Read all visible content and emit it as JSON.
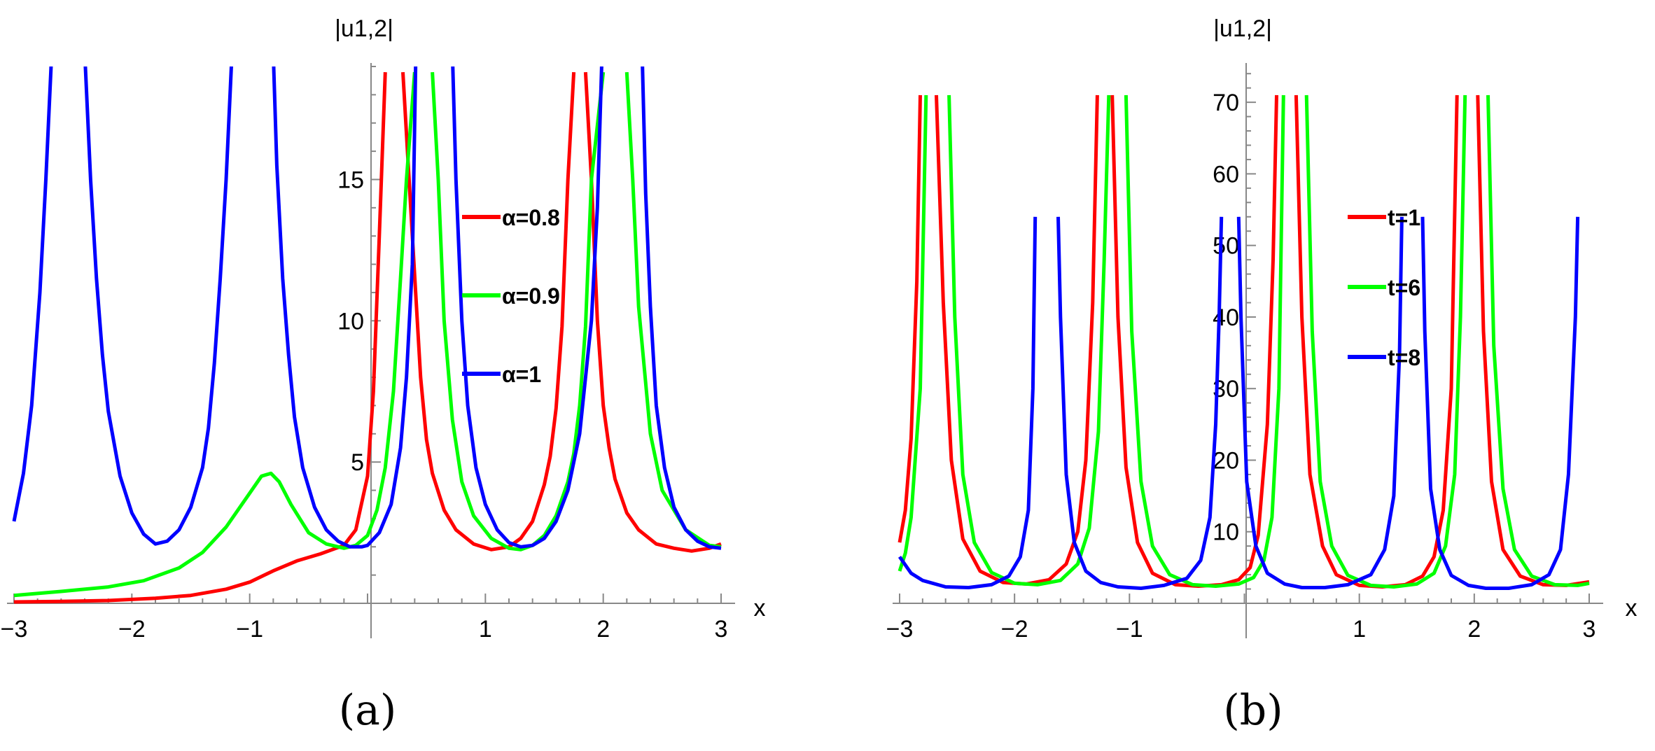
{
  "chart_data": [
    {
      "type": "line",
      "panel_label": "(a)",
      "xlabel": "x",
      "ylabel": "|u1,2|",
      "xlim": [
        -3,
        3
      ],
      "ylim": [
        0,
        19
      ],
      "x_ticks": [
        "−3",
        "−2",
        "−1",
        "1",
        "2",
        "3"
      ],
      "y_ticks": [
        "5",
        "10",
        "15"
      ],
      "legend_position": "right",
      "series": [
        {
          "name": "α=0.8",
          "color": "#ff0000",
          "x": [
            -3.0,
            -2.6,
            -2.2,
            -1.8,
            -1.5,
            -1.2,
            -1.0,
            -0.8,
            -0.6,
            -0.4,
            -0.2,
            -0.1,
            0.0,
            0.05,
            0.1,
            0.15,
            0.2,
            0.3,
            0.38,
            0.45,
            0.5,
            0.55,
            0.65,
            0.75,
            0.9,
            1.05,
            1.2,
            1.3,
            1.4,
            1.5,
            1.55,
            1.6,
            1.65,
            1.7,
            1.75,
            1.8,
            1.85,
            1.9,
            1.95,
            2.0,
            2.05,
            2.1,
            2.2,
            2.3,
            2.45,
            2.6,
            2.75,
            2.9,
            3.0
          ],
          "y": [
            0.05,
            0.07,
            0.1,
            0.18,
            0.28,
            0.5,
            0.75,
            1.15,
            1.5,
            1.75,
            2.05,
            2.6,
            4.5,
            7.5,
            13.0,
            18.8,
            null,
            18.8,
            13.0,
            8.0,
            5.8,
            4.6,
            3.3,
            2.6,
            2.1,
            1.9,
            2.0,
            2.3,
            2.9,
            4.2,
            5.2,
            6.9,
            9.8,
            15.0,
            18.8,
            null,
            18.8,
            15.0,
            10.0,
            7.0,
            5.5,
            4.4,
            3.2,
            2.6,
            2.1,
            1.95,
            1.85,
            1.95,
            2.1
          ]
        },
        {
          "name": "α=0.9",
          "color": "#00ff00",
          "x": [
            -3.0,
            -2.6,
            -2.2,
            -1.9,
            -1.6,
            -1.4,
            -1.2,
            -1.0,
            -0.9,
            -0.82,
            -0.75,
            -0.65,
            -0.5,
            -0.35,
            -0.2,
            -0.1,
            0.0,
            0.08,
            0.15,
            0.22,
            0.28,
            0.33,
            0.4,
            0.48,
            0.55,
            0.6,
            0.65,
            0.72,
            0.8,
            0.9,
            1.05,
            1.2,
            1.3,
            1.4,
            1.5,
            1.6,
            1.7,
            1.75,
            1.8,
            1.85,
            1.9,
            2.0,
            2.1,
            2.2,
            2.25,
            2.3,
            2.4,
            2.5,
            2.7,
            2.9,
            3.0
          ],
          "y": [
            0.28,
            0.42,
            0.58,
            0.8,
            1.25,
            1.8,
            2.7,
            3.9,
            4.5,
            4.6,
            4.3,
            3.5,
            2.5,
            2.1,
            1.95,
            2.05,
            2.4,
            3.3,
            4.8,
            7.5,
            11.5,
            15.0,
            18.8,
            null,
            18.8,
            15.0,
            10.0,
            6.5,
            4.3,
            3.1,
            2.3,
            1.95,
            1.9,
            2.05,
            2.4,
            3.1,
            4.3,
            5.3,
            7.0,
            9.8,
            15.0,
            18.8,
            null,
            18.8,
            15.0,
            10.5,
            6.0,
            4.0,
            2.6,
            2.05,
            2.0
          ]
        },
        {
          "name": "α=1",
          "color": "#0000ff",
          "x": [
            -3.0,
            -2.92,
            -2.85,
            -2.78,
            -2.73,
            -2.68,
            null,
            -2.4,
            -2.35,
            -2.3,
            -2.25,
            -2.2,
            -2.1,
            -2.0,
            -1.9,
            -1.8,
            -1.7,
            -1.6,
            -1.5,
            -1.4,
            -1.35,
            -1.3,
            -1.25,
            -1.2,
            -1.15,
            null,
            -0.8,
            -0.77,
            -0.72,
            -0.67,
            -0.62,
            -0.55,
            -0.45,
            -0.35,
            -0.25,
            -0.15,
            -0.05,
            0.0,
            0.1,
            0.2,
            0.28,
            0.33,
            0.38,
            0.41,
            null,
            0.72,
            0.75,
            0.8,
            0.85,
            0.92,
            1.0,
            1.1,
            1.2,
            1.3,
            1.4,
            1.5,
            1.6,
            1.7,
            1.8,
            1.9,
            1.95,
            1.99,
            null,
            2.33,
            2.36,
            2.4,
            2.45,
            2.52,
            2.6,
            2.7,
            2.8,
            2.9,
            3.0
          ],
          "y": [
            2.9,
            4.6,
            7.0,
            11.0,
            15.0,
            19.5,
            null,
            19.5,
            15.0,
            11.5,
            8.8,
            6.8,
            4.5,
            3.2,
            2.45,
            2.1,
            2.2,
            2.6,
            3.4,
            4.8,
            6.2,
            8.5,
            11.5,
            15.0,
            19.5,
            null,
            19.5,
            15.5,
            11.5,
            8.8,
            6.6,
            4.8,
            3.4,
            2.6,
            2.2,
            2.0,
            2.0,
            2.05,
            2.5,
            3.5,
            5.5,
            8.0,
            12.0,
            19.5,
            null,
            19.5,
            15.0,
            10.0,
            7.0,
            4.8,
            3.5,
            2.6,
            2.15,
            2.0,
            2.05,
            2.3,
            2.9,
            4.0,
            6.0,
            10.0,
            14.0,
            19.5,
            null,
            19.5,
            14.5,
            10.5,
            7.0,
            4.8,
            3.4,
            2.6,
            2.2,
            2.0,
            1.95
          ]
        }
      ]
    },
    {
      "type": "line",
      "panel_label": "(b)",
      "xlabel": "x",
      "ylabel": "|u1,2|",
      "xlim": [
        -3,
        3
      ],
      "ylim": [
        0,
        75
      ],
      "x_ticks": [
        "−3",
        "−2",
        "−1",
        "1",
        "2",
        "3"
      ],
      "y_ticks": [
        "10",
        "20",
        "30",
        "40",
        "50",
        "60",
        "70"
      ],
      "legend_position": "right",
      "series": [
        {
          "name": "t=1",
          "color": "#ff0000",
          "x": [
            -3.0,
            -2.95,
            -2.9,
            -2.85,
            -2.82,
            null,
            -2.68,
            -2.62,
            -2.55,
            -2.45,
            -2.3,
            -2.1,
            -1.9,
            -1.7,
            -1.55,
            -1.45,
            -1.38,
            -1.32,
            -1.28,
            null,
            -1.15,
            -1.1,
            -1.03,
            -0.93,
            -0.8,
            -0.6,
            -0.4,
            -0.2,
            -0.05,
            0.05,
            0.12,
            0.2,
            0.25,
            0.28,
            null,
            0.45,
            0.5,
            0.57,
            0.68,
            0.8,
            1.0,
            1.2,
            1.4,
            1.55,
            1.65,
            1.73,
            1.8,
            1.85,
            null,
            2.03,
            2.08,
            2.15,
            2.25,
            2.4,
            2.6,
            2.8,
            3.0
          ],
          "y": [
            8.5,
            13.0,
            23.0,
            45.0,
            71.0,
            null,
            71.0,
            42.0,
            20.0,
            9.0,
            4.5,
            2.9,
            2.7,
            3.3,
            5.5,
            10.0,
            20.0,
            42.0,
            71.0,
            null,
            71.0,
            40.0,
            19.0,
            8.5,
            4.2,
            2.6,
            2.4,
            2.6,
            3.3,
            5.0,
            9.5,
            25.0,
            48.0,
            71.0,
            null,
            71.0,
            40.0,
            18.0,
            8.0,
            4.0,
            2.5,
            2.3,
            2.6,
            3.8,
            6.5,
            13.0,
            30.0,
            71.0,
            null,
            71.0,
            38.0,
            17.0,
            7.5,
            3.8,
            2.6,
            2.5,
            3.0
          ]
        },
        {
          "name": "t=6",
          "color": "#00ff00",
          "x": [
            -3.0,
            -2.95,
            -2.9,
            -2.82,
            -2.77,
            null,
            -2.57,
            -2.52,
            -2.45,
            -2.35,
            -2.2,
            -2.0,
            -1.8,
            -1.6,
            -1.45,
            -1.35,
            -1.27,
            -1.22,
            -1.18,
            null,
            -1.03,
            -0.98,
            -0.9,
            -0.8,
            -0.65,
            -0.45,
            -0.25,
            -0.05,
            0.08,
            0.17,
            0.24,
            0.3,
            0.34,
            null,
            0.54,
            0.59,
            0.66,
            0.76,
            0.9,
            1.1,
            1.3,
            1.5,
            1.65,
            1.75,
            1.83,
            1.88,
            1.92,
            null,
            2.12,
            2.17,
            2.25,
            2.35,
            2.5,
            2.7,
            2.9,
            3.0
          ],
          "y": [
            4.5,
            7.0,
            12.0,
            30.0,
            71.0,
            null,
            71.0,
            40.0,
            18.0,
            8.5,
            4.3,
            2.8,
            2.6,
            3.2,
            5.5,
            10.5,
            24.0,
            48.0,
            71.0,
            null,
            71.0,
            38.0,
            17.0,
            8.0,
            4.0,
            2.6,
            2.4,
            2.7,
            3.6,
            6.0,
            12.0,
            30.0,
            71.0,
            null,
            71.0,
            38.0,
            17.0,
            8.0,
            3.9,
            2.5,
            2.3,
            2.7,
            4.2,
            8.0,
            18.0,
            40.0,
            71.0,
            null,
            71.0,
            36.0,
            16.0,
            7.5,
            3.8,
            2.6,
            2.5,
            2.8
          ]
        },
        {
          "name": "t=8",
          "color": "#0000ff",
          "x": [
            -3.0,
            -2.9,
            -2.8,
            -2.6,
            -2.4,
            -2.2,
            -2.05,
            -1.95,
            -1.88,
            -1.84,
            -1.82,
            null,
            -1.62,
            -1.6,
            -1.55,
            -1.48,
            -1.38,
            -1.25,
            -1.1,
            -0.9,
            -0.7,
            -0.5,
            -0.38,
            -0.3,
            -0.25,
            -0.22,
            -0.2,
            null,
            -0.05,
            -0.03,
            0.02,
            0.1,
            0.2,
            0.35,
            0.5,
            0.7,
            0.9,
            1.1,
            1.22,
            1.3,
            1.35,
            1.37,
            null,
            1.55,
            1.57,
            1.62,
            1.7,
            1.8,
            1.95,
            2.1,
            2.3,
            2.5,
            2.65,
            2.75,
            2.82,
            2.88,
            2.9
          ],
          "y": [
            6.5,
            4.2,
            3.2,
            2.3,
            2.2,
            2.6,
            3.8,
            6.5,
            13.0,
            30.0,
            54.0,
            null,
            54.0,
            40.0,
            18.0,
            8.5,
            4.5,
            2.9,
            2.3,
            2.1,
            2.5,
            3.5,
            6.0,
            12.0,
            25.0,
            40.0,
            54.0,
            null,
            54.0,
            40.0,
            17.0,
            8.0,
            4.2,
            2.7,
            2.2,
            2.2,
            2.6,
            4.0,
            7.5,
            15.0,
            35.0,
            54.0,
            null,
            54.0,
            38.0,
            16.0,
            7.5,
            3.9,
            2.5,
            2.1,
            2.1,
            2.6,
            4.0,
            7.5,
            18.0,
            40.0,
            54.0
          ]
        }
      ]
    }
  ]
}
